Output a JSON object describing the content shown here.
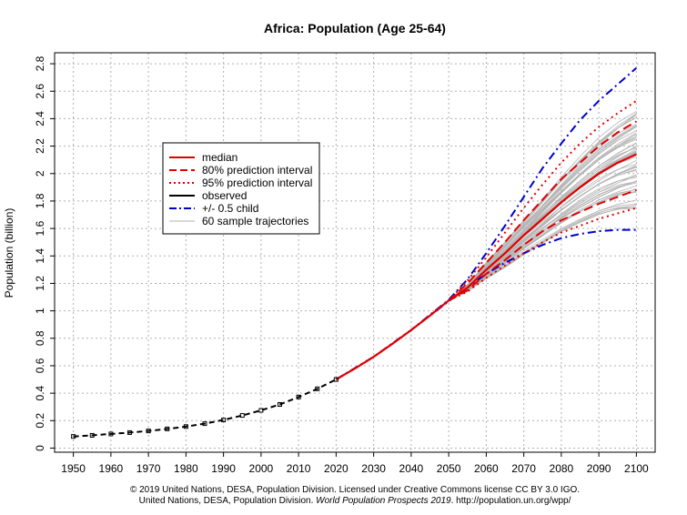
{
  "chart_data": {
    "type": "line",
    "title": "Africa: Population (Age 25-64)",
    "ylabel": "Population (billion)",
    "xlabel": "",
    "xlim": [
      1945,
      2105
    ],
    "ylim": [
      -0.03,
      2.88
    ],
    "x_ticks": [
      1950,
      1960,
      1970,
      1980,
      1990,
      2000,
      2010,
      2020,
      2030,
      2040,
      2050,
      2060,
      2070,
      2080,
      2090,
      2100
    ],
    "y_ticks": [
      0,
      0.2,
      0.4,
      0.6,
      0.8,
      1,
      1.2,
      1.4,
      1.6,
      1.8,
      2,
      2.2,
      2.4,
      2.6,
      2.8
    ],
    "y_tick_labels": [
      "0",
      "0.2",
      "0.4",
      "0.6",
      "0.8",
      "1",
      "1.2",
      "1.4",
      "1.6",
      "1.8",
      "2",
      "2.2",
      "2.4",
      "2.6",
      "2.8"
    ],
    "grid": true,
    "legend_position": "top-left",
    "legend": [
      {
        "label": "median",
        "color": "#e00000",
        "style": "solid",
        "width": 2
      },
      {
        "label": "80% prediction interval",
        "color": "#e00000",
        "style": "dashed",
        "width": 2
      },
      {
        "label": "95% prediction interval",
        "color": "#e00000",
        "style": "dotted",
        "width": 2
      },
      {
        "label": "observed",
        "color": "#000000",
        "style": "solid",
        "width": 2
      },
      {
        "label": "+/- 0.5 child",
        "color": "#0000cc",
        "style": "dashdot",
        "width": 2
      },
      {
        "label": "60 sample trajectories",
        "color": "#b0b0b0",
        "style": "solid",
        "width": 1
      }
    ],
    "series": {
      "observed": {
        "x": [
          1950,
          1955,
          1960,
          1965,
          1970,
          1975,
          1980,
          1985,
          1990,
          1995,
          2000,
          2005,
          2010,
          2015,
          2020
        ],
        "y": [
          0.085,
          0.093,
          0.103,
          0.113,
          0.125,
          0.14,
          0.157,
          0.178,
          0.205,
          0.238,
          0.275,
          0.318,
          0.372,
          0.432,
          0.5
        ]
      },
      "median": {
        "x": [
          2020,
          2025,
          2030,
          2035,
          2040,
          2045,
          2050,
          2055,
          2060,
          2065,
          2070,
          2075,
          2080,
          2085,
          2090,
          2095,
          2100
        ],
        "y": [
          0.5,
          0.58,
          0.665,
          0.76,
          0.86,
          0.965,
          1.075,
          1.17,
          1.3,
          1.42,
          1.55,
          1.67,
          1.79,
          1.9,
          2.0,
          2.08,
          2.14
        ]
      },
      "pi80_upper": {
        "x": [
          2050,
          2055,
          2060,
          2065,
          2070,
          2075,
          2080,
          2085,
          2090,
          2095,
          2100
        ],
        "y": [
          1.075,
          1.2,
          1.35,
          1.5,
          1.66,
          1.81,
          1.96,
          2.08,
          2.2,
          2.3,
          2.38
        ]
      },
      "pi80_lower": {
        "x": [
          2050,
          2055,
          2060,
          2065,
          2070,
          2075,
          2080,
          2085,
          2090,
          2095,
          2100
        ],
        "y": [
          1.075,
          1.15,
          1.27,
          1.37,
          1.48,
          1.58,
          1.66,
          1.72,
          1.78,
          1.83,
          1.88
        ]
      },
      "pi95_upper": {
        "x": [
          2050,
          2055,
          2060,
          2065,
          2070,
          2075,
          2080,
          2085,
          2090,
          2095,
          2100
        ],
        "y": [
          1.075,
          1.22,
          1.39,
          1.57,
          1.75,
          1.92,
          2.08,
          2.22,
          2.34,
          2.44,
          2.53
        ]
      },
      "pi95_lower": {
        "x": [
          2050,
          2055,
          2060,
          2065,
          2070,
          2075,
          2080,
          2085,
          2090,
          2095,
          2100
        ],
        "y": [
          1.075,
          1.14,
          1.24,
          1.33,
          1.42,
          1.5,
          1.57,
          1.62,
          1.67,
          1.71,
          1.75
        ]
      },
      "half_child_upper": {
        "x": [
          2020,
          2030,
          2040,
          2050,
          2055,
          2060,
          2065,
          2070,
          2075,
          2080,
          2085,
          2090,
          2095,
          2100
        ],
        "y": [
          0.5,
          0.665,
          0.86,
          1.08,
          1.23,
          1.42,
          1.62,
          1.83,
          2.04,
          2.22,
          2.39,
          2.53,
          2.65,
          2.77
        ]
      },
      "half_child_lower": {
        "x": [
          2020,
          2030,
          2040,
          2050,
          2055,
          2060,
          2065,
          2070,
          2075,
          2080,
          2085,
          2090,
          2095,
          2100
        ],
        "y": [
          0.5,
          0.665,
          0.86,
          1.07,
          1.17,
          1.27,
          1.35,
          1.42,
          1.48,
          1.53,
          1.56,
          1.58,
          1.59,
          1.59
        ]
      },
      "sample_trajectories": {
        "x_start": 2050,
        "x_end": 2100,
        "y_start": 1.075,
        "y_end_range": [
          1.72,
          2.46
        ],
        "count": 60
      }
    }
  },
  "footer": {
    "line1": "© 2019 United Nations, DESA, Population Division. Licensed under Creative Commons license CC BY 3.0 IGO.",
    "line2_prefix": "United Nations, DESA, Population Division. ",
    "line2_italic": "World Population Prospects 2019",
    "line2_suffix": ". http://population.un.org/wpp/"
  }
}
